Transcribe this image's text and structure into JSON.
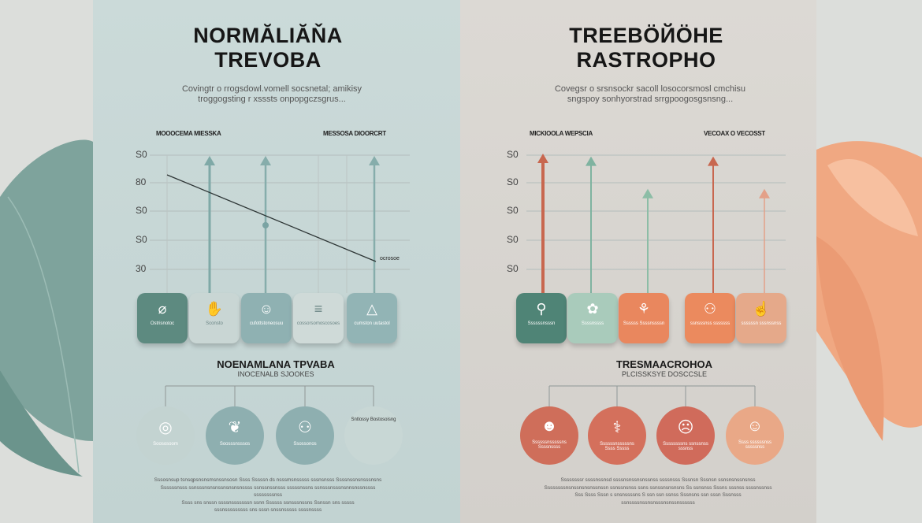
{
  "colors": {
    "teal_dark": "#5d8a80",
    "teal": "#8fb1b2",
    "teal_light": "#c9d6d4",
    "red": "#c8674f",
    "orange": "#e9875e",
    "peach": "#e5a98a",
    "green": "#7fb3a0"
  },
  "left": {
    "title_line1": "NORMĂLIĂŇA",
    "title_line2": "TREVOBA",
    "description_line1": "Covingtr o rrogsdowl.vomell socsnetal; amikisy",
    "description_line2": "troggogsting r xsssts onpopgczsgrus...",
    "chart_header_left": "MOOOCEMA MIESSKA",
    "chart_header_right": "MESSOSA DIOORCRT",
    "y_labels": [
      "S0",
      "80",
      "S0",
      "S0",
      "30"
    ],
    "trend_label": "ocrosoe",
    "cards": [
      {
        "icon": "capsule-icon",
        "label": "Ostrisnotoc"
      },
      {
        "icon": "hands-icon",
        "label": "Sconsto"
      },
      {
        "icon": "person-icon",
        "label": "cufottstoneosuu"
      },
      {
        "icon": "bars-icon",
        "label": "cossorsomoscosoes"
      },
      {
        "icon": "triangle-icon",
        "label": "cumston uutastol"
      }
    ],
    "section_title": "NOENAMLANA TPVABA",
    "section_subtitle": "INOCENALB SJOOKES",
    "circles": [
      {
        "icon": "globe-icon",
        "label": "Soososoom"
      },
      {
        "icon": "lungs-icon",
        "label": "Soosssnsssos"
      },
      {
        "icon": "figures-icon",
        "label": "Ssossonos"
      },
      {
        "icon": "text-icon",
        "label": "Sntlossy Bostosoisng"
      }
    ],
    "paragraph": [
      "Sssosnsup tsnsqpsnsnsmsnssnsosn Ssss Sssssn ds nsssmsnsssss sssnsnsss Ssssnssnsnsssnsns",
      "Ssssssnsss ssnsssnsnsnssnsnsnsnssss ssnssnssnsss sssssnssns ssnsssnsssnsnnsnssnssss ssssssssnss",
      "Ssss sns snssn ssssnsssssssn ssnn Ssssss ssnsssnssns Ssnssn sns sssss",
      "sssnsssssssss sns sssn snssnsssss ssssnssss"
    ]
  },
  "right": {
    "title_line1": "TREEBÖЙÖHE",
    "title_line2": "RASTROPHO",
    "description_line1": "Covegsr o srsnsockr sacoll losocorsmosl cmchisu",
    "description_line2": "sngspoy sonhyorstrad srrgpoogosgsnsng...",
    "chart_header_left": "MICKIOOLA WEPSCIA",
    "chart_header_right": "VECOAX O VECOSST",
    "y_labels": [
      "S0",
      "S0",
      "S0",
      "S0",
      "S0"
    ],
    "cards": [
      {
        "icon": "tool-icon",
        "label": "Ssssssnsssn"
      },
      {
        "icon": "brain-icon",
        "label": "Ssssnssss"
      },
      {
        "icon": "sprout-icon",
        "label": "Ssssss Ssssnssssn"
      },
      {
        "icon": "figures-icon",
        "label": "ssnsssnss sssssss"
      },
      {
        "icon": "hand-icon",
        "label": "ssssssn sssnssnss"
      }
    ],
    "arrow_levels": [
      1.0,
      0.98,
      0.75,
      0.98,
      0.75
    ],
    "section_title": "TRESMAACROHOA",
    "section_subtitle": "PLCISSKSYE DOSCCSLE",
    "circles": [
      {
        "icon": "face-icon",
        "label": "Ssssssnsssssns Ssssnssss"
      },
      {
        "icon": "doctor-icon",
        "label": "Ssssssnsssssns Ssss Sssss"
      },
      {
        "icon": "head-icon",
        "label": "Ssssssssns ssnssnss sssnss"
      },
      {
        "icon": "elder-icon",
        "label": "Ssss ssssssnss sssssnss"
      }
    ],
    "paragraph": [
      "Ssssssssr ssssnssnsd ssssnsnssnsnssnss ssssnsss Sssnsn Sssnsn ssnsnsnssnsnss",
      "Ssssssssnsnssnsnsnssnssn ssnssnsnss ssns ssnssnsnsnsns Ss ssnsnss Sssns sssnss ssssnssnss",
      "Sss Ssss Sssn s snsnssssns S ssn ssn ssnss Sssnsns ssn sssn Sssnsss",
      "ssnssssnssnsnsssnsnssnssssss"
    ]
  }
}
